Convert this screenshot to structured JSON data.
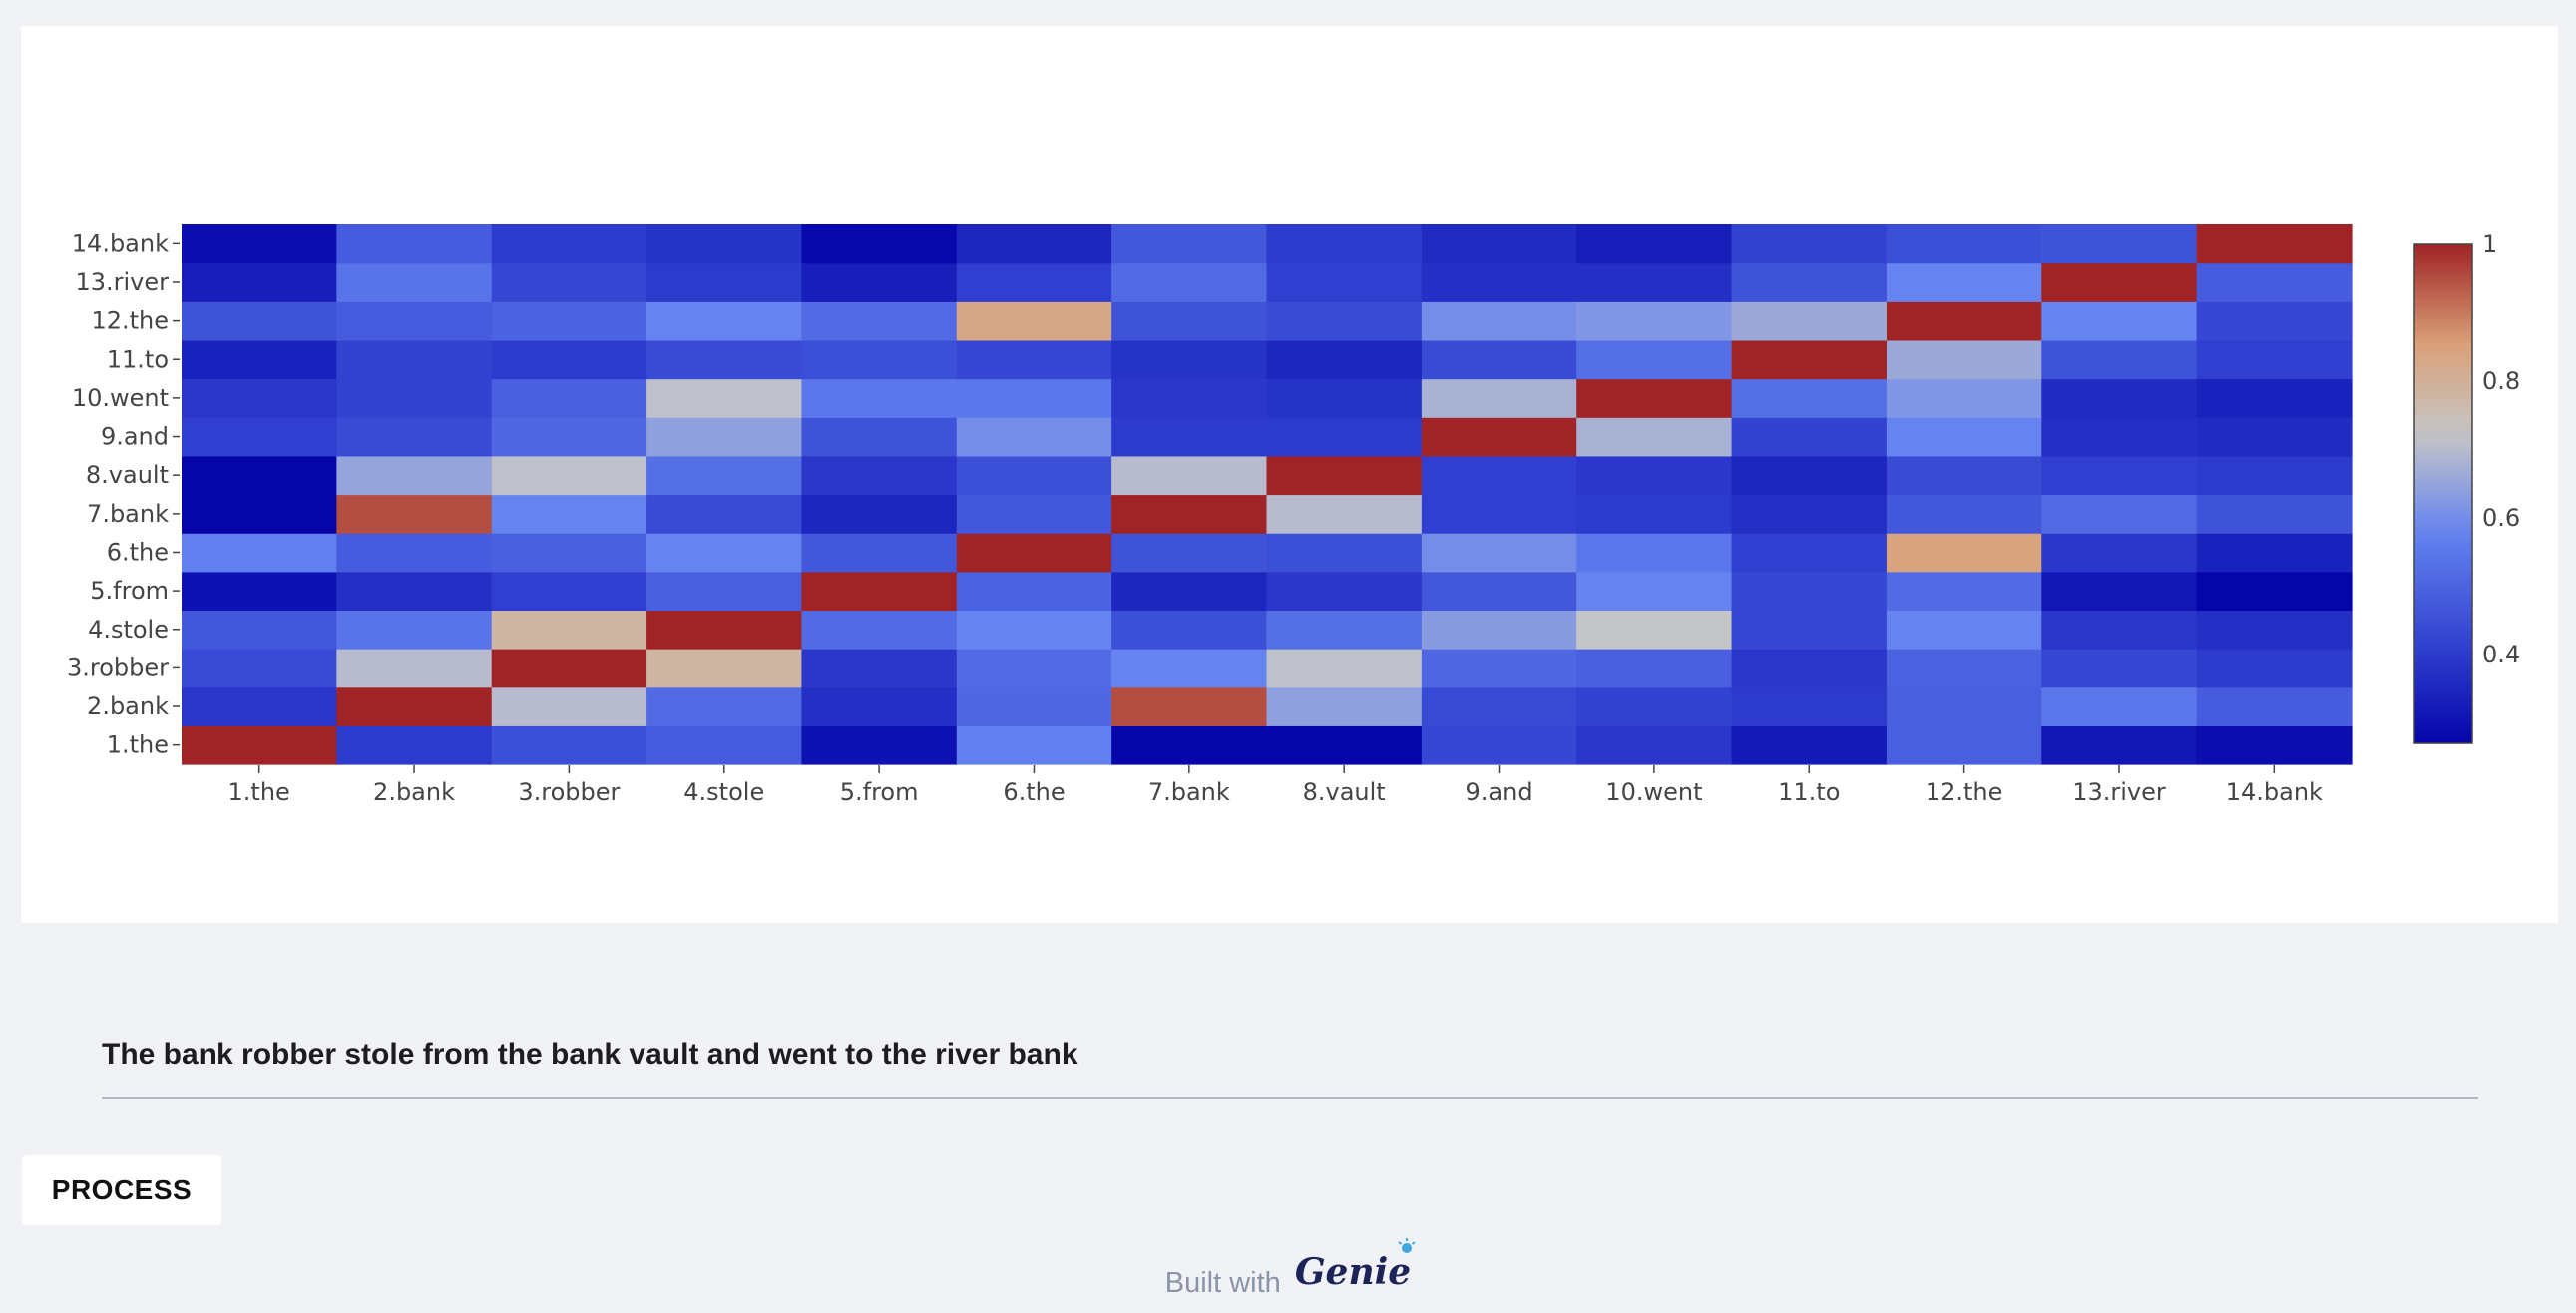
{
  "chart_data": {
    "type": "heatmap",
    "x_labels": [
      "1.the",
      "2.bank",
      "3.robber",
      "4.stole",
      "5.from",
      "6.the",
      "7.bank",
      "8.vault",
      "9.and",
      "10.went",
      "11.to",
      "12.the",
      "13.river",
      "14.bank"
    ],
    "y_labels": [
      "1.the",
      "2.bank",
      "3.robber",
      "4.stole",
      "5.from",
      "6.the",
      "7.bank",
      "8.vault",
      "9.and",
      "10.went",
      "11.to",
      "12.the",
      "13.river",
      "14.bank"
    ],
    "z": [
      [
        1.0,
        0.4,
        0.45,
        0.48,
        0.3,
        0.57,
        0.27,
        0.27,
        0.43,
        0.39,
        0.32,
        0.49,
        0.31,
        0.29
      ],
      [
        0.39,
        1.0,
        0.7,
        0.52,
        0.37,
        0.51,
        0.95,
        0.64,
        0.44,
        0.42,
        0.4,
        0.49,
        0.55,
        0.48
      ],
      [
        0.44,
        0.7,
        1.0,
        0.78,
        0.39,
        0.52,
        0.58,
        0.71,
        0.51,
        0.49,
        0.39,
        0.5,
        0.43,
        0.4
      ],
      [
        0.47,
        0.54,
        0.78,
        1.0,
        0.52,
        0.58,
        0.45,
        0.53,
        0.63,
        0.72,
        0.43,
        0.58,
        0.39,
        0.37
      ],
      [
        0.3,
        0.37,
        0.41,
        0.49,
        1.0,
        0.5,
        0.35,
        0.39,
        0.47,
        0.58,
        0.43,
        0.52,
        0.31,
        0.27
      ],
      [
        0.57,
        0.48,
        0.49,
        0.58,
        0.47,
        1.0,
        0.46,
        0.45,
        0.6,
        0.55,
        0.41,
        0.84,
        0.39,
        0.34
      ],
      [
        0.27,
        0.95,
        0.58,
        0.44,
        0.35,
        0.47,
        1.0,
        0.7,
        0.41,
        0.4,
        0.37,
        0.47,
        0.52,
        0.46
      ],
      [
        0.27,
        0.65,
        0.71,
        0.53,
        0.39,
        0.45,
        0.7,
        1.0,
        0.41,
        0.39,
        0.35,
        0.44,
        0.41,
        0.4
      ],
      [
        0.41,
        0.44,
        0.51,
        0.64,
        0.46,
        0.6,
        0.4,
        0.4,
        1.0,
        0.68,
        0.42,
        0.58,
        0.37,
        0.36
      ],
      [
        0.39,
        0.42,
        0.49,
        0.71,
        0.55,
        0.55,
        0.39,
        0.38,
        0.68,
        1.0,
        0.53,
        0.62,
        0.36,
        0.34
      ],
      [
        0.34,
        0.42,
        0.4,
        0.44,
        0.45,
        0.43,
        0.38,
        0.35,
        0.44,
        0.53,
        1.0,
        0.66,
        0.46,
        0.41
      ],
      [
        0.46,
        0.48,
        0.5,
        0.58,
        0.52,
        0.83,
        0.46,
        0.44,
        0.6,
        0.62,
        0.66,
        1.0,
        0.58,
        0.43
      ],
      [
        0.33,
        0.54,
        0.43,
        0.4,
        0.33,
        0.41,
        0.52,
        0.41,
        0.37,
        0.37,
        0.46,
        0.58,
        1.0,
        0.48
      ],
      [
        0.29,
        0.48,
        0.4,
        0.38,
        0.28,
        0.35,
        0.47,
        0.4,
        0.36,
        0.33,
        0.42,
        0.45,
        0.46,
        1.0
      ]
    ],
    "zmin": 0.27,
    "zmax": 1.0,
    "colorscale": "coolwarm",
    "colorbar_ticks": [
      "1",
      "0.8",
      "0.6",
      "0.4"
    ],
    "colorbar_tick_values": [
      1.0,
      0.8,
      0.6,
      0.4
    ],
    "title": "",
    "xlabel": "",
    "ylabel": "",
    "grid": false,
    "legend": "colorbar-right"
  },
  "sentence": {
    "text": "The bank robber stole from the bank vault and went to the river bank"
  },
  "process_button": {
    "label": "PROCESS"
  },
  "footer": {
    "built_with": "Built with",
    "logo_text": "Genie",
    "logo_icon": "genie-lamp-icon"
  }
}
